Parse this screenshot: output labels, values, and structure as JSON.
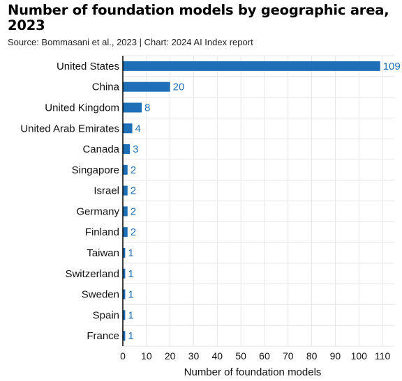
{
  "title": "Number of foundation models by geographic area, 2023",
  "subtitle": "Source: Bommasani et al., 2023 | Chart: 2024 AI Index report",
  "colors": {
    "bar": "#1f6fb7",
    "grid": "#e6e6e6",
    "axis": "#000000"
  },
  "chart_data": {
    "type": "bar",
    "orientation": "horizontal",
    "categories": [
      "United States",
      "China",
      "United Kingdom",
      "United Arab Emirates",
      "Canada",
      "Singapore",
      "Israel",
      "Germany",
      "Finland",
      "Taiwan",
      "Switzerland",
      "Sweden",
      "Spain",
      "France"
    ],
    "values": [
      109,
      20,
      8,
      4,
      3,
      2,
      2,
      2,
      2,
      1,
      1,
      1,
      1,
      1
    ],
    "xlabel": "Number of foundation models",
    "xlim": [
      0,
      115
    ],
    "xticks": [
      0,
      10,
      20,
      30,
      40,
      50,
      60,
      70,
      80,
      90,
      100,
      110
    ],
    "grid": true,
    "data_labels": true
  }
}
